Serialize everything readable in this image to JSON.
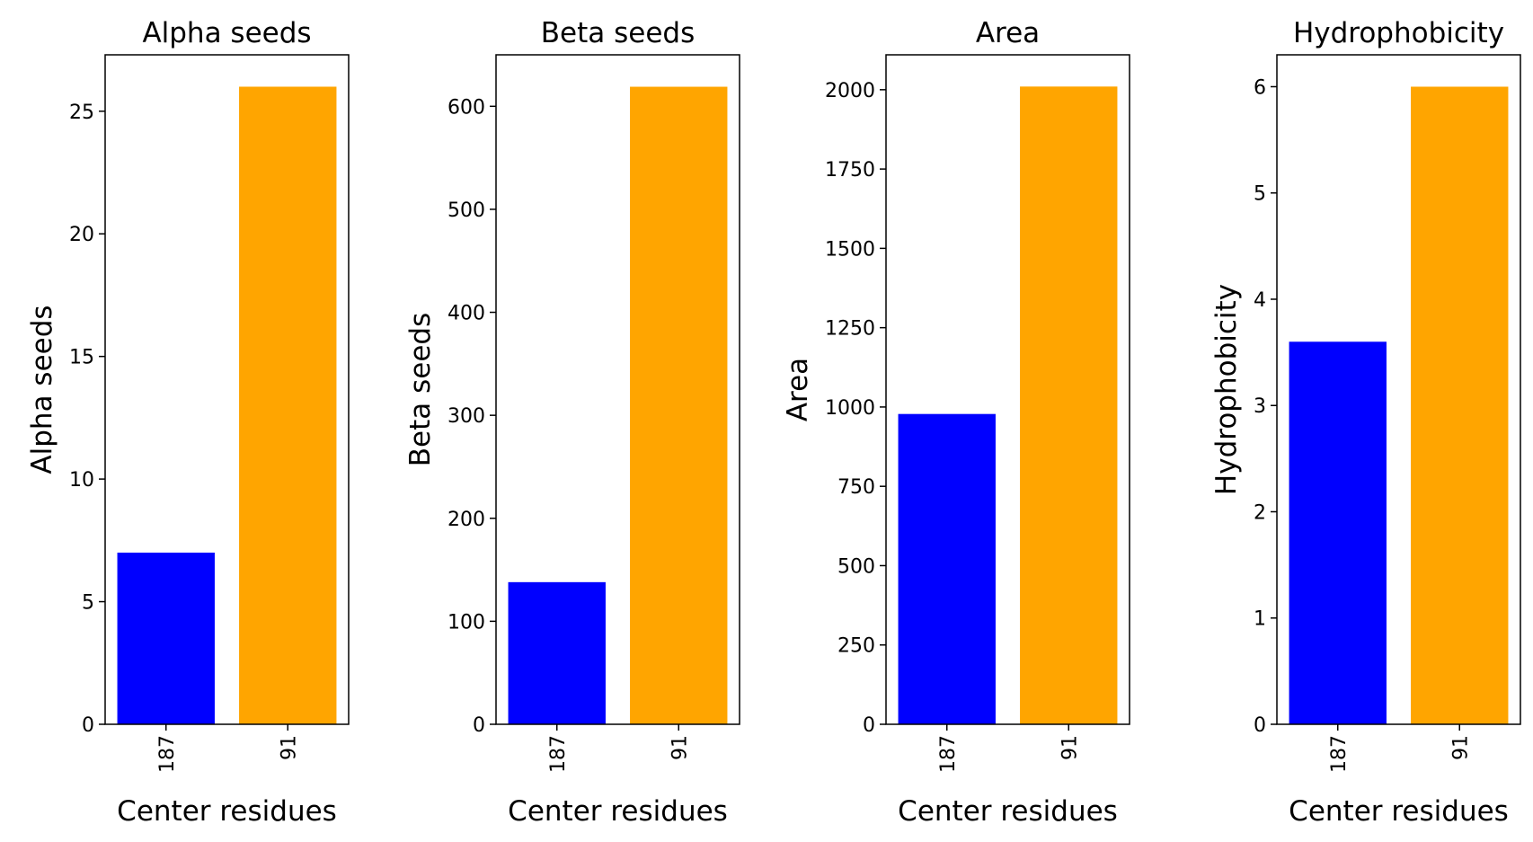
{
  "chart_data": [
    {
      "type": "bar",
      "title": "Alpha seeds",
      "xlabel": "Center residues",
      "ylabel": "Alpha seeds",
      "categories": [
        "187",
        "91"
      ],
      "values": [
        7,
        26
      ],
      "colors": [
        "#0000ff",
        "#ffa500"
      ],
      "ylim": [
        0,
        27.3
      ],
      "yticks": [
        0,
        5,
        10,
        15,
        20,
        25
      ]
    },
    {
      "type": "bar",
      "title": "Beta seeds",
      "xlabel": "Center residues",
      "ylabel": "Beta seeds",
      "categories": [
        "187",
        "91"
      ],
      "values": [
        138,
        619
      ],
      "colors": [
        "#0000ff",
        "#ffa500"
      ],
      "ylim": [
        0,
        650
      ],
      "yticks": [
        0,
        100,
        200,
        300,
        400,
        500,
        600
      ]
    },
    {
      "type": "bar",
      "title": "Area",
      "xlabel": "Center residues",
      "ylabel": "Area",
      "categories": [
        "187",
        "91"
      ],
      "values": [
        978,
        2010
      ],
      "colors": [
        "#0000ff",
        "#ffa500"
      ],
      "ylim": [
        0,
        2110
      ],
      "yticks": [
        0,
        250,
        500,
        750,
        1000,
        1250,
        1500,
        1750,
        2000
      ]
    },
    {
      "type": "bar",
      "title": "Hydrophobicity",
      "xlabel": "Center residues",
      "ylabel": "Hydrophobicity",
      "categories": [
        "187",
        "91"
      ],
      "values": [
        3.6,
        6
      ],
      "colors": [
        "#0000ff",
        "#ffa500"
      ],
      "ylim": [
        0,
        6.3
      ],
      "yticks": [
        0,
        1,
        2,
        3,
        4,
        5,
        6
      ]
    }
  ]
}
